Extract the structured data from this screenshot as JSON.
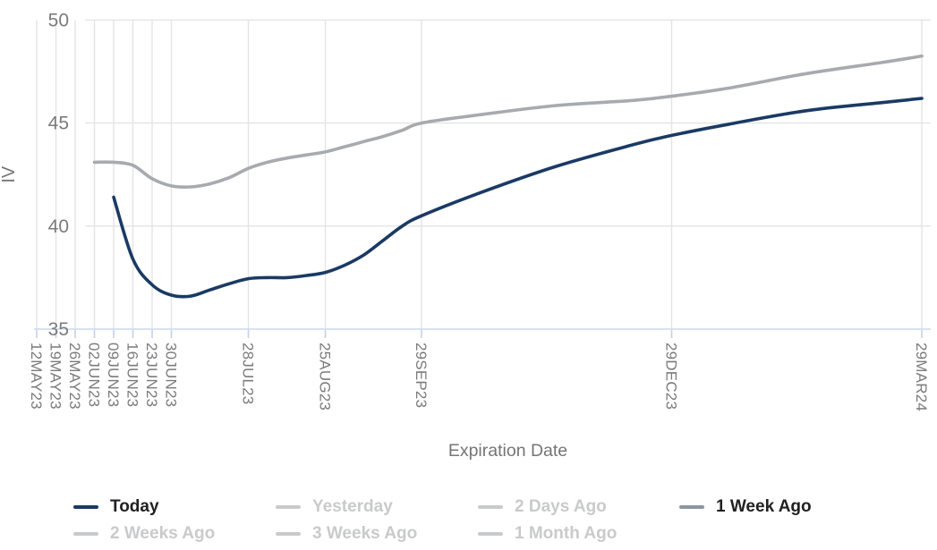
{
  "chart_data": {
    "type": "line",
    "title": "",
    "x_axis": {
      "label": "Expiration Date",
      "tick_labels": [
        "12MAY23",
        "19MAY23",
        "26MAY23",
        "02JUN23",
        "09JUN23",
        "16JUN23",
        "23JUN23",
        "30JUN23",
        "28JUL23",
        "25AUG23",
        "29SEP23",
        "29DEC23",
        "29MAR24"
      ],
      "tick_days": [
        0,
        7,
        14,
        21,
        28,
        35,
        42,
        49,
        77,
        105,
        140,
        231,
        322
      ],
      "domain_days": [
        0,
        322
      ]
    },
    "y_axis": {
      "label": "IV",
      "ticks": [
        35,
        40,
        45,
        50
      ],
      "min": 35,
      "max": 50
    },
    "series": [
      {
        "name": "Today",
        "color": "#1a3a64",
        "points": [
          [
            28,
            41.4
          ],
          [
            35,
            38.4
          ],
          [
            42,
            37.15
          ],
          [
            49,
            36.65
          ],
          [
            56,
            36.6
          ],
          [
            63,
            36.9
          ],
          [
            70,
            37.2
          ],
          [
            77,
            37.45
          ],
          [
            84,
            37.5
          ],
          [
            91,
            37.5
          ],
          [
            98,
            37.6
          ],
          [
            105,
            37.75
          ],
          [
            112,
            38.1
          ],
          [
            119,
            38.6
          ],
          [
            126,
            39.3
          ],
          [
            133,
            40.0
          ],
          [
            140,
            40.5
          ],
          [
            161,
            41.6
          ],
          [
            189,
            42.9
          ],
          [
            217,
            43.95
          ],
          [
            231,
            44.4
          ],
          [
            252,
            44.95
          ],
          [
            280,
            45.6
          ],
          [
            308,
            46.0
          ],
          [
            322,
            46.2
          ]
        ]
      },
      {
        "name": "1 Week Ago",
        "color": "#a7aaae",
        "points": [
          [
            21,
            43.1
          ],
          [
            28,
            43.1
          ],
          [
            35,
            42.95
          ],
          [
            42,
            42.3
          ],
          [
            49,
            41.95
          ],
          [
            56,
            41.9
          ],
          [
            63,
            42.05
          ],
          [
            70,
            42.35
          ],
          [
            77,
            42.8
          ],
          [
            84,
            43.1
          ],
          [
            91,
            43.3
          ],
          [
            98,
            43.45
          ],
          [
            105,
            43.6
          ],
          [
            112,
            43.85
          ],
          [
            119,
            44.1
          ],
          [
            126,
            44.35
          ],
          [
            133,
            44.65
          ],
          [
            140,
            45.0
          ],
          [
            161,
            45.4
          ],
          [
            189,
            45.85
          ],
          [
            217,
            46.1
          ],
          [
            231,
            46.3
          ],
          [
            252,
            46.7
          ],
          [
            280,
            47.4
          ],
          [
            308,
            47.95
          ],
          [
            322,
            48.25
          ]
        ]
      }
    ],
    "legend": {
      "items": [
        {
          "label": "Today",
          "active": true,
          "marker_color": "#1a3a64"
        },
        {
          "label": "Yesterday",
          "active": false,
          "marker_color": "#c9cacb"
        },
        {
          "label": "2 Days Ago",
          "active": false,
          "marker_color": "#c9cacb"
        },
        {
          "label": "1 Week Ago",
          "active": true,
          "marker_color": "#8d959d"
        },
        {
          "label": "2 Weeks Ago",
          "active": false,
          "marker_color": "#c9cacb"
        },
        {
          "label": "3 Weeks Ago",
          "active": false,
          "marker_color": "#c9cacb"
        },
        {
          "label": "1 Month Ago",
          "active": false,
          "marker_color": "#c9cacb"
        }
      ]
    },
    "colors": {
      "gridline": "#e4e4e4",
      "axis_line": "#ccd7ee",
      "tick_mark": "#c2d0ec",
      "axis_text": "#7b7b7b",
      "axis_title_text": "#757575",
      "legend_active_text": "#212121",
      "legend_disabled": "#c9cacb"
    }
  }
}
